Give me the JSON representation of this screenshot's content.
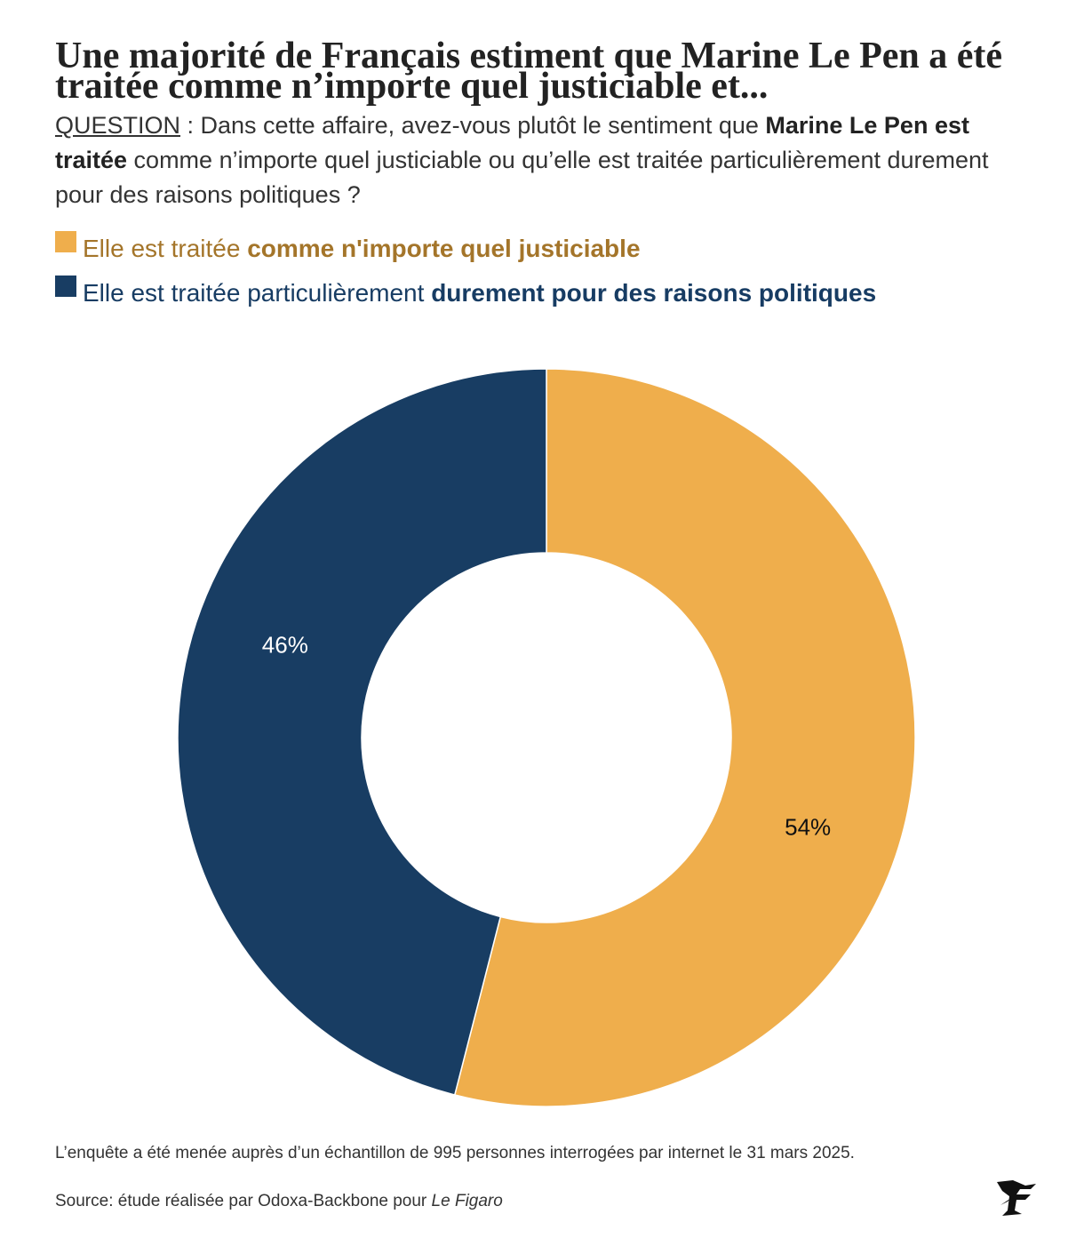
{
  "title": "Une majorité de Français estiment que Marine Le Pen a été traitée comme n’importe quel justiciable et...",
  "question": {
    "label": "QUESTION",
    "part1": " : Dans cette affaire, avez-vous plutôt le sentiment que ",
    "bold1": "Marine Le Pen est traitée",
    "part2": " comme n’importe quel justiciable ou qu’elle est traitée particulièrement durement pour des raisons politiques ?"
  },
  "legend": [
    {
      "prefix": "Elle est traitée ",
      "bold": "comme n'importe quel justiciable",
      "color": "#efae4c",
      "text_color": "#a4752a"
    },
    {
      "prefix": "Elle est traitée particulièrement ",
      "bold": "durement pour des raisons politiques",
      "color": "#183d63",
      "text_color": "#173c63"
    }
  ],
  "chart_data": {
    "type": "pie",
    "donut": true,
    "slices": [
      {
        "label": "Elle est traitée comme n'importe quel justiciable",
        "value": 54,
        "display": "54%",
        "color": "#efae4c",
        "label_color": "#111111"
      },
      {
        "label": "Elle est traitée particulièrement durement pour des raisons politiques",
        "value": 46,
        "display": "46%",
        "color": "#183d63",
        "label_color": "#ffffff"
      }
    ],
    "start_angle_deg": 0,
    "direction": "clockwise"
  },
  "footnote": "L’enquête a été menée auprès d’un échantillon de 995 personnes interrogées par internet le 31 mars 2025.",
  "source": {
    "prefix": "Source: étude réalisée par Odoxa-Backbone pour ",
    "italic": "Le Figaro"
  },
  "logo": {
    "icon": "le-figaro-logo-icon"
  }
}
